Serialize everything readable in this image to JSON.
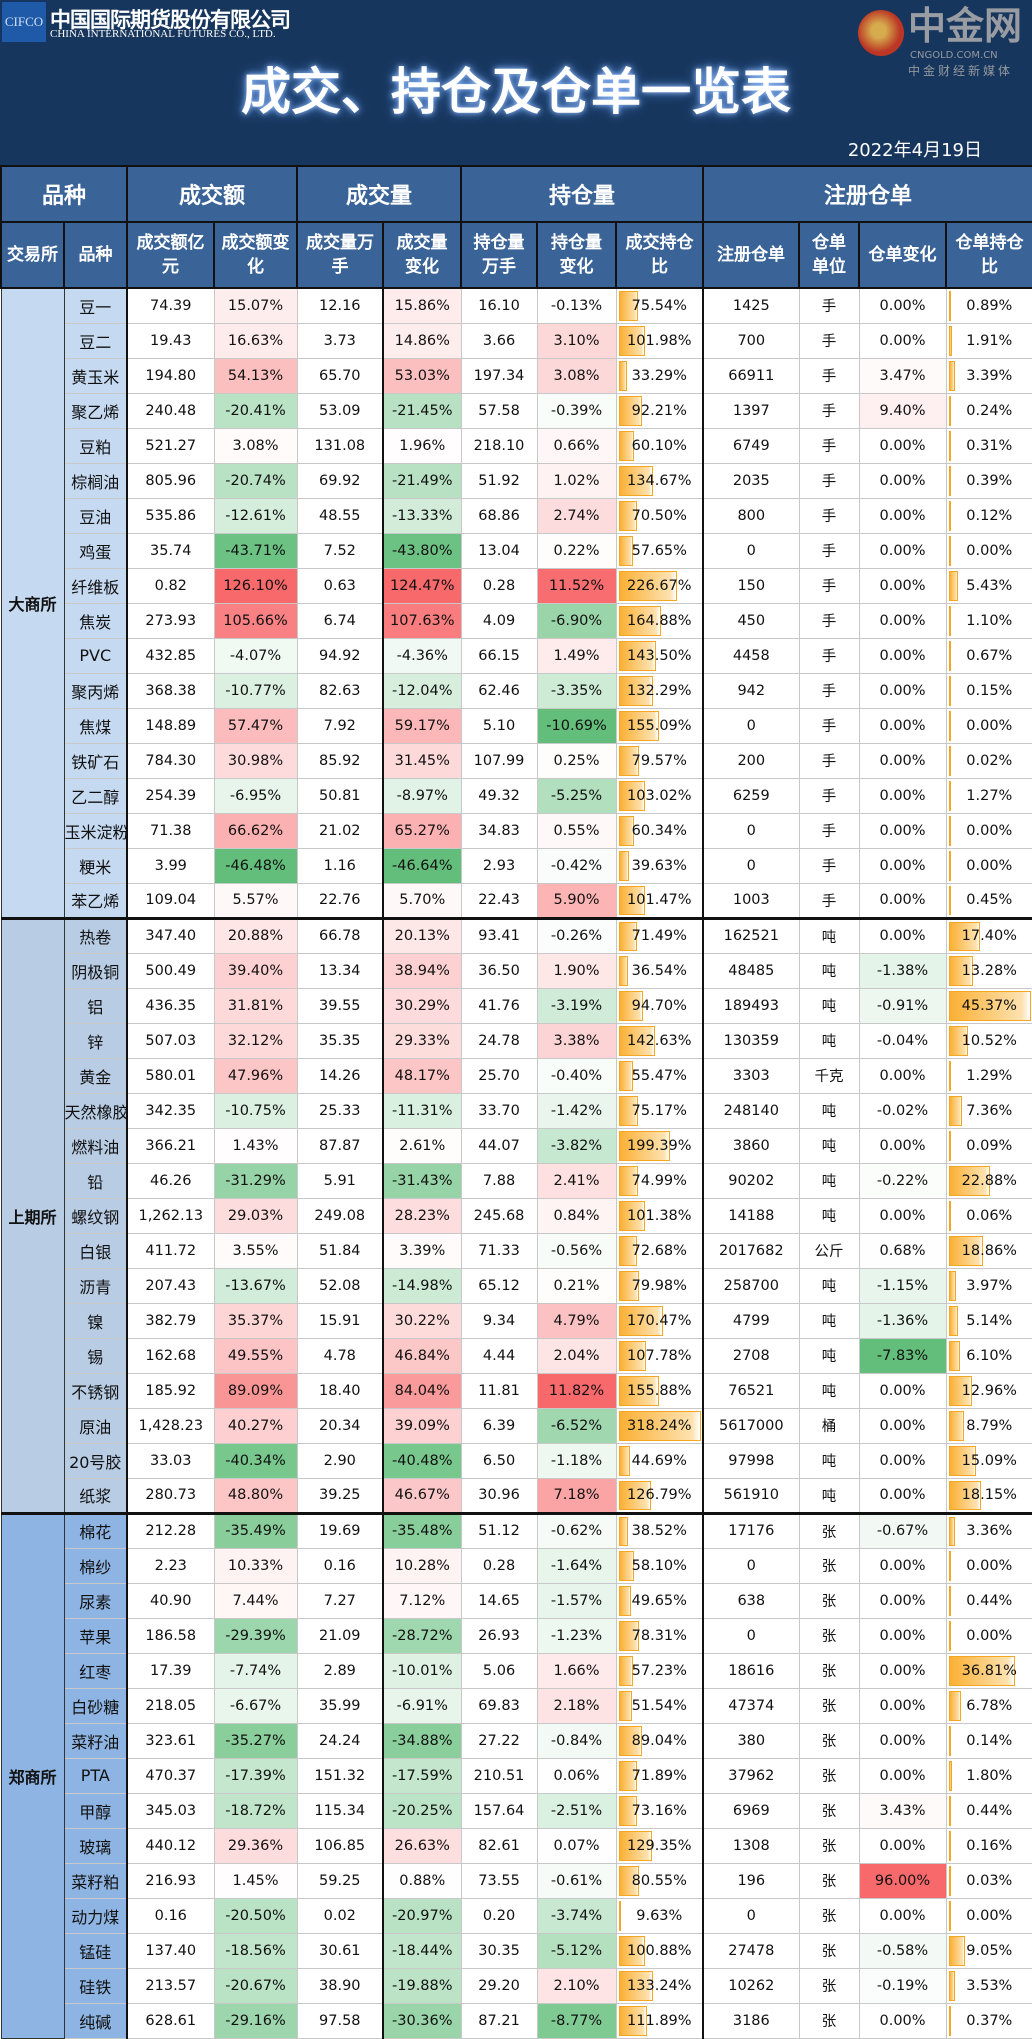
{
  "header": {
    "logo_abbr": "CIFCO",
    "company_cn": "中国国际期货股份有限公司",
    "company_en": "CHINA INTERNATIONAL FUTURES CO., LTD.",
    "title": "成交、持仓及仓单一览表",
    "date": "2022年4月19日"
  },
  "columns": {
    "group": [
      "品种",
      "成交额",
      "成交量",
      "持仓量",
      "注册仓单"
    ],
    "sub": [
      "交易所",
      "品种",
      "成交额亿元",
      "成交额变化",
      "成交量万手",
      "成交量变化",
      "持仓量万手",
      "持仓量变化",
      "成交持仓比",
      "注册仓单",
      "仓单单位",
      "仓单变化",
      "仓单持仓比"
    ]
  },
  "colors": {
    "header_bg": "#17365d",
    "column_header_bg": "#3a6397",
    "positive": "#f8696b",
    "negative": "#63be7b",
    "databar": "#fbb034",
    "exchange_bg": [
      "#c5d9f1",
      "#b8cce4",
      "#8db4e2"
    ]
  },
  "exchanges": [
    {
      "name": "大商所",
      "rows": [
        [
          "豆一",
          "74.39",
          "15.07%",
          "12.16",
          "15.86%",
          "16.10",
          "-0.13%",
          "75.54%",
          "1425",
          "手",
          "0.00%",
          "0.89%"
        ],
        [
          "豆二",
          "19.43",
          "16.63%",
          "3.73",
          "14.86%",
          "3.66",
          "3.10%",
          "101.98%",
          "700",
          "手",
          "0.00%",
          "1.91%"
        ],
        [
          "黄玉米",
          "194.80",
          "54.13%",
          "65.70",
          "53.03%",
          "197.34",
          "3.08%",
          "33.29%",
          "66911",
          "手",
          "3.47%",
          "3.39%"
        ],
        [
          "聚乙烯",
          "240.48",
          "-20.41%",
          "53.09",
          "-21.45%",
          "57.58",
          "-0.39%",
          "92.21%",
          "1397",
          "手",
          "9.40%",
          "0.24%"
        ],
        [
          "豆粕",
          "521.27",
          "3.08%",
          "131.08",
          "1.96%",
          "218.10",
          "0.66%",
          "60.10%",
          "6749",
          "手",
          "0.00%",
          "0.31%"
        ],
        [
          "棕榈油",
          "805.96",
          "-20.74%",
          "69.92",
          "-21.49%",
          "51.92",
          "1.02%",
          "134.67%",
          "2035",
          "手",
          "0.00%",
          "0.39%"
        ],
        [
          "豆油",
          "535.86",
          "-12.61%",
          "48.55",
          "-13.33%",
          "68.86",
          "2.74%",
          "70.50%",
          "800",
          "手",
          "0.00%",
          "0.12%"
        ],
        [
          "鸡蛋",
          "35.74",
          "-43.71%",
          "7.52",
          "-43.80%",
          "13.04",
          "0.22%",
          "57.65%",
          "0",
          "手",
          "0.00%",
          "0.00%"
        ],
        [
          "纤维板",
          "0.82",
          "126.10%",
          "0.63",
          "124.47%",
          "0.28",
          "11.52%",
          "226.67%",
          "150",
          "手",
          "0.00%",
          "5.43%"
        ],
        [
          "焦炭",
          "273.93",
          "105.66%",
          "6.74",
          "107.63%",
          "4.09",
          "-6.90%",
          "164.88%",
          "450",
          "手",
          "0.00%",
          "1.10%"
        ],
        [
          "PVC",
          "432.85",
          "-4.07%",
          "94.92",
          "-4.36%",
          "66.15",
          "1.49%",
          "143.50%",
          "4458",
          "手",
          "0.00%",
          "0.67%"
        ],
        [
          "聚丙烯",
          "368.38",
          "-10.77%",
          "82.63",
          "-12.04%",
          "62.46",
          "-3.35%",
          "132.29%",
          "942",
          "手",
          "0.00%",
          "0.15%"
        ],
        [
          "焦煤",
          "148.89",
          "57.47%",
          "7.92",
          "59.17%",
          "5.10",
          "-10.69%",
          "155.09%",
          "0",
          "手",
          "0.00%",
          "0.00%"
        ],
        [
          "铁矿石",
          "784.30",
          "30.98%",
          "85.92",
          "31.45%",
          "107.99",
          "0.25%",
          "79.57%",
          "200",
          "手",
          "0.00%",
          "0.02%"
        ],
        [
          "乙二醇",
          "254.39",
          "-6.95%",
          "50.81",
          "-8.97%",
          "49.32",
          "-5.25%",
          "103.02%",
          "6259",
          "手",
          "0.00%",
          "1.27%"
        ],
        [
          "玉米淀粉",
          "71.38",
          "66.62%",
          "21.02",
          "65.27%",
          "34.83",
          "0.55%",
          "60.34%",
          "0",
          "手",
          "0.00%",
          "0.00%"
        ],
        [
          "粳米",
          "3.99",
          "-46.48%",
          "1.16",
          "-46.64%",
          "2.93",
          "-0.42%",
          "39.63%",
          "0",
          "手",
          "0.00%",
          "0.00%"
        ],
        [
          "苯乙烯",
          "109.04",
          "5.57%",
          "22.76",
          "5.70%",
          "22.43",
          "5.90%",
          "101.47%",
          "1003",
          "手",
          "0.00%",
          "0.45%"
        ]
      ]
    },
    {
      "name": "上期所",
      "rows": [
        [
          "热卷",
          "347.40",
          "20.88%",
          "66.78",
          "20.13%",
          "93.41",
          "-0.26%",
          "71.49%",
          "162521",
          "吨",
          "0.00%",
          "17.40%"
        ],
        [
          "阴极铜",
          "500.49",
          "39.40%",
          "13.34",
          "38.94%",
          "36.50",
          "1.90%",
          "36.54%",
          "48485",
          "吨",
          "-1.38%",
          "13.28%"
        ],
        [
          "铝",
          "436.35",
          "31.81%",
          "39.55",
          "30.29%",
          "41.76",
          "-3.19%",
          "94.70%",
          "189493",
          "吨",
          "-0.91%",
          "45.37%"
        ],
        [
          "锌",
          "507.03",
          "32.12%",
          "35.35",
          "29.33%",
          "24.78",
          "3.38%",
          "142.63%",
          "130359",
          "吨",
          "-0.04%",
          "10.52%"
        ],
        [
          "黄金",
          "580.01",
          "47.96%",
          "14.26",
          "48.17%",
          "25.70",
          "-0.40%",
          "55.47%",
          "3303",
          "千克",
          "0.00%",
          "1.29%"
        ],
        [
          "天然橡胶",
          "342.35",
          "-10.75%",
          "25.33",
          "-11.31%",
          "33.70",
          "-1.42%",
          "75.17%",
          "248140",
          "吨",
          "-0.02%",
          "7.36%"
        ],
        [
          "燃料油",
          "366.21",
          "1.43%",
          "87.87",
          "2.61%",
          "44.07",
          "-3.82%",
          "199.39%",
          "3860",
          "吨",
          "0.00%",
          "0.09%"
        ],
        [
          "铅",
          "46.26",
          "-31.29%",
          "5.91",
          "-31.43%",
          "7.88",
          "2.41%",
          "74.99%",
          "90202",
          "吨",
          "-0.22%",
          "22.88%"
        ],
        [
          "螺纹钢",
          "1,262.13",
          "29.03%",
          "249.08",
          "28.23%",
          "245.68",
          "0.84%",
          "101.38%",
          "14188",
          "吨",
          "0.00%",
          "0.06%"
        ],
        [
          "白银",
          "411.72",
          "3.55%",
          "51.84",
          "3.39%",
          "71.33",
          "-0.56%",
          "72.68%",
          "2017682",
          "公斤",
          "0.68%",
          "18.86%"
        ],
        [
          "沥青",
          "207.43",
          "-13.67%",
          "52.08",
          "-14.98%",
          "65.12",
          "0.21%",
          "79.98%",
          "258700",
          "吨",
          "-1.15%",
          "3.97%"
        ],
        [
          "镍",
          "382.79",
          "35.37%",
          "15.91",
          "30.22%",
          "9.34",
          "4.79%",
          "170.47%",
          "4799",
          "吨",
          "-1.36%",
          "5.14%"
        ],
        [
          "锡",
          "162.68",
          "49.55%",
          "4.78",
          "46.84%",
          "4.44",
          "2.04%",
          "107.78%",
          "2708",
          "吨",
          "-7.83%",
          "6.10%"
        ],
        [
          "不锈钢",
          "185.92",
          "89.09%",
          "18.40",
          "84.04%",
          "11.81",
          "11.82%",
          "155.88%",
          "76521",
          "吨",
          "0.00%",
          "12.96%"
        ],
        [
          "原油",
          "1,428.23",
          "40.27%",
          "20.34",
          "39.09%",
          "6.39",
          "-6.52%",
          "318.24%",
          "5617000",
          "桶",
          "0.00%",
          "8.79%"
        ],
        [
          "20号胶",
          "33.03",
          "-40.34%",
          "2.90",
          "-40.48%",
          "6.50",
          "-1.18%",
          "44.69%",
          "97998",
          "吨",
          "0.00%",
          "15.09%"
        ],
        [
          "纸浆",
          "280.73",
          "48.80%",
          "39.25",
          "46.67%",
          "30.96",
          "7.18%",
          "126.79%",
          "561910",
          "吨",
          "0.00%",
          "18.15%"
        ]
      ]
    },
    {
      "name": "郑商所",
      "rows": [
        [
          "棉花",
          "212.28",
          "-35.49%",
          "19.69",
          "-35.48%",
          "51.12",
          "-0.62%",
          "38.52%",
          "17176",
          "张",
          "-0.67%",
          "3.36%"
        ],
        [
          "棉纱",
          "2.23",
          "10.33%",
          "0.16",
          "10.28%",
          "0.28",
          "-1.64%",
          "58.10%",
          "0",
          "张",
          "0.00%",
          "0.00%"
        ],
        [
          "尿素",
          "40.90",
          "7.44%",
          "7.27",
          "7.12%",
          "14.65",
          "-1.57%",
          "49.65%",
          "638",
          "张",
          "0.00%",
          "0.44%"
        ],
        [
          "苹果",
          "186.58",
          "-29.39%",
          "21.09",
          "-28.72%",
          "26.93",
          "-1.23%",
          "78.31%",
          "0",
          "张",
          "0.00%",
          "0.00%"
        ],
        [
          "红枣",
          "17.39",
          "-7.74%",
          "2.89",
          "-10.01%",
          "5.06",
          "1.66%",
          "57.23%",
          "18616",
          "张",
          "0.00%",
          "36.81%"
        ],
        [
          "白砂糖",
          "218.05",
          "-6.67%",
          "35.99",
          "-6.91%",
          "69.83",
          "2.18%",
          "51.54%",
          "47374",
          "张",
          "0.00%",
          "6.78%"
        ],
        [
          "菜籽油",
          "323.61",
          "-35.27%",
          "24.24",
          "-34.88%",
          "27.22",
          "-0.84%",
          "89.04%",
          "380",
          "张",
          "0.00%",
          "0.14%"
        ],
        [
          "PTA",
          "470.37",
          "-17.39%",
          "151.32",
          "-17.59%",
          "210.51",
          "0.06%",
          "71.89%",
          "37962",
          "张",
          "0.00%",
          "1.80%"
        ],
        [
          "甲醇",
          "345.03",
          "-18.72%",
          "115.34",
          "-20.25%",
          "157.64",
          "-2.51%",
          "73.16%",
          "6969",
          "张",
          "3.43%",
          "0.44%"
        ],
        [
          "玻璃",
          "440.12",
          "29.36%",
          "106.85",
          "26.63%",
          "82.61",
          "0.07%",
          "129.35%",
          "1308",
          "张",
          "0.00%",
          "0.16%"
        ],
        [
          "菜籽粕",
          "216.93",
          "1.45%",
          "59.25",
          "0.88%",
          "73.55",
          "-0.61%",
          "80.55%",
          "196",
          "张",
          "96.00%",
          "0.03%"
        ],
        [
          "动力煤",
          "0.16",
          "-20.50%",
          "0.02",
          "-20.97%",
          "0.20",
          "-3.74%",
          "9.63%",
          "0",
          "张",
          "0.00%",
          "0.00%"
        ],
        [
          "锰硅",
          "137.40",
          "-18.56%",
          "30.61",
          "-18.44%",
          "30.35",
          "-5.12%",
          "100.88%",
          "27478",
          "张",
          "-0.58%",
          "9.05%"
        ],
        [
          "硅铁",
          "213.57",
          "-20.67%",
          "38.90",
          "-19.88%",
          "29.20",
          "2.10%",
          "133.24%",
          "10262",
          "张",
          "-0.19%",
          "3.53%"
        ],
        [
          "纯碱",
          "628.61",
          "-29.16%",
          "97.58",
          "-30.36%",
          "87.21",
          "-8.77%",
          "111.89%",
          "3186",
          "张",
          "0.00%",
          "0.37%"
        ]
      ]
    }
  ],
  "watermark": {
    "logo_text": "中金网",
    "domain": "CNGOLD.COM.CN",
    "slogan": "中金财经新媒体"
  }
}
